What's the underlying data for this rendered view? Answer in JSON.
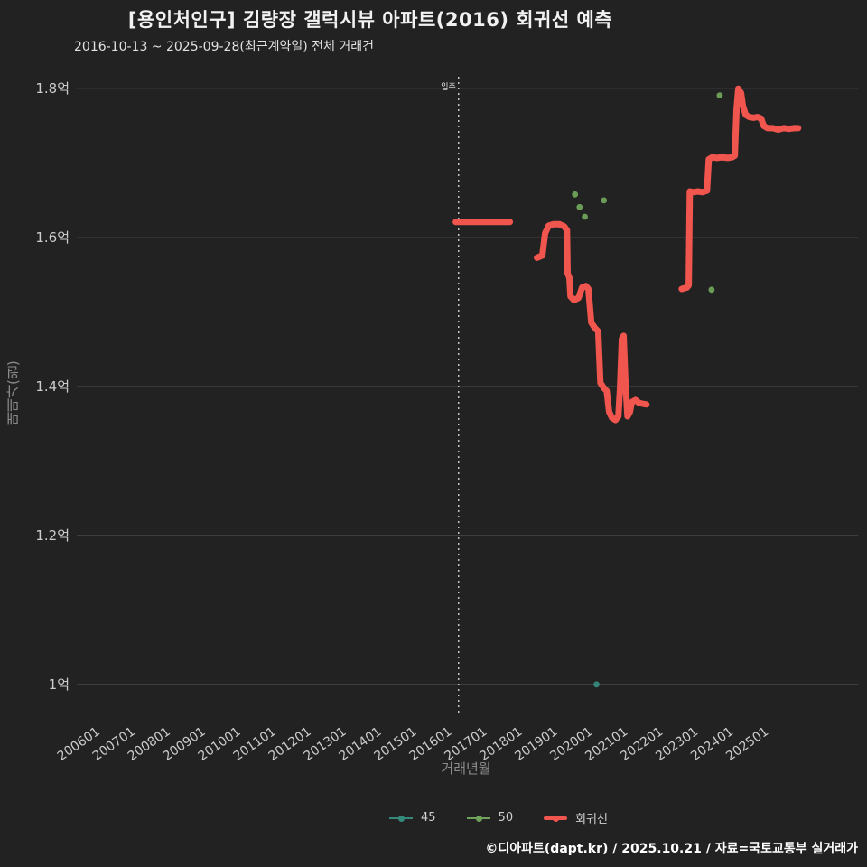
{
  "header": {
    "title": "[용인처인구] 김량장 갤럭시뷰 아파트(2016) 회귀선 예측",
    "subtitle": "2016-10-13 ~ 2025-09-28(최근계약일) 전체 거래건"
  },
  "legend": {
    "items": [
      {
        "label": "45",
        "color": "#35897b",
        "thick": false
      },
      {
        "label": "50",
        "color": "#6fa35c",
        "thick": false
      },
      {
        "label": "회귀선",
        "color": "#f0554e",
        "thick": true
      }
    ]
  },
  "footer": {
    "credit": "©디아파트(dapt.kr) / 2025.10.21 / 자료=국토교통부 실거래가"
  },
  "chart_data": {
    "type": "line",
    "title": "[용인처인구] 김량장 갤럭시뷰 아파트(2016) 회귀선 예측",
    "subtitle": "2016-10-13 ~ 2025-09-28(최근계약일) 전체 거래건",
    "xlabel": "거래년월",
    "ylabel": "매매가(원)",
    "grid": true,
    "legend_position": "bottom",
    "colors": {
      "background": "#222222",
      "gridline": "#4f4f4f",
      "tick_text": "#cccccc",
      "regression": "#f0554e",
      "scatter_50": "#6fa35c",
      "scatter_45": "#35897b",
      "annotation_line": "#cfcfcf"
    },
    "axis": {
      "x_min": 2005.5,
      "x_max": 2027.7,
      "y_min": 0.961,
      "y_max": 1.816
    },
    "x_tick_start_year": 2006,
    "x_ticks": [
      "200601",
      "200701",
      "200801",
      "200901",
      "201001",
      "201101",
      "201201",
      "201301",
      "201401",
      "201501",
      "201601",
      "201701",
      "201801",
      "201901",
      "202001",
      "202101",
      "202201",
      "202301",
      "202401",
      "202501"
    ],
    "y_ticks": [
      {
        "label": "1.8억",
        "value": 1.8
      },
      {
        "label": "1.6억",
        "value": 1.6
      },
      {
        "label": "1.4억",
        "value": 1.4
      },
      {
        "label": "1.2억",
        "value": 1.2
      },
      {
        "label": "1억",
        "value": 1.0
      }
    ],
    "annotation": {
      "x": 2016.35,
      "label": "입주",
      "line_style": "dotted"
    },
    "series": [
      {
        "name": "회귀선",
        "type": "line",
        "color": "#f0554e",
        "width": 7,
        "segments": [
          [
            [
              2016.27,
              1.621
            ],
            [
              2017.81,
              1.621
            ]
          ],
          [
            [
              2018.58,
              1.573
            ],
            [
              2018.73,
              1.576
            ],
            [
              2018.81,
              1.606
            ],
            [
              2018.91,
              1.616
            ],
            [
              2019.04,
              1.618
            ],
            [
              2019.22,
              1.618
            ],
            [
              2019.35,
              1.615
            ],
            [
              2019.43,
              1.61
            ],
            [
              2019.45,
              1.552
            ],
            [
              2019.5,
              1.546
            ],
            [
              2019.53,
              1.521
            ],
            [
              2019.63,
              1.516
            ],
            [
              2019.76,
              1.519
            ],
            [
              2019.86,
              1.533
            ],
            [
              2019.97,
              1.535
            ],
            [
              2020.04,
              1.531
            ],
            [
              2020.12,
              1.486
            ],
            [
              2020.22,
              1.479
            ],
            [
              2020.32,
              1.474
            ],
            [
              2020.38,
              1.405
            ],
            [
              2020.48,
              1.398
            ],
            [
              2020.56,
              1.394
            ],
            [
              2020.63,
              1.366
            ],
            [
              2020.71,
              1.358
            ],
            [
              2020.81,
              1.355
            ],
            [
              2020.89,
              1.36
            ],
            [
              2020.94,
              1.4
            ],
            [
              2020.99,
              1.464
            ],
            [
              2021.04,
              1.468
            ],
            [
              2021.09,
              1.41
            ],
            [
              2021.15,
              1.36
            ],
            [
              2021.22,
              1.366
            ],
            [
              2021.27,
              1.379
            ],
            [
              2021.38,
              1.382
            ],
            [
              2021.48,
              1.378
            ],
            [
              2021.58,
              1.377
            ],
            [
              2021.69,
              1.376
            ]
          ],
          [
            [
              2022.69,
              1.531
            ],
            [
              2022.84,
              1.533
            ],
            [
              2022.89,
              1.536
            ],
            [
              2022.92,
              1.662
            ],
            [
              2023.02,
              1.661
            ],
            [
              2023.15,
              1.662
            ],
            [
              2023.28,
              1.661
            ],
            [
              2023.41,
              1.663
            ],
            [
              2023.46,
              1.705
            ],
            [
              2023.56,
              1.708
            ],
            [
              2023.69,
              1.707
            ],
            [
              2023.84,
              1.708
            ],
            [
              2024.0,
              1.707
            ],
            [
              2024.13,
              1.708
            ],
            [
              2024.2,
              1.71
            ],
            [
              2024.25,
              1.773
            ],
            [
              2024.3,
              1.8
            ],
            [
              2024.38,
              1.794
            ],
            [
              2024.43,
              1.777
            ],
            [
              2024.51,
              1.765
            ],
            [
              2024.61,
              1.762
            ],
            [
              2024.74,
              1.761
            ],
            [
              2024.84,
              1.762
            ],
            [
              2024.95,
              1.76
            ],
            [
              2025.02,
              1.75
            ],
            [
              2025.13,
              1.747
            ],
            [
              2025.28,
              1.747
            ],
            [
              2025.43,
              1.745
            ],
            [
              2025.59,
              1.747
            ],
            [
              2025.74,
              1.746
            ],
            [
              2025.89,
              1.747
            ],
            [
              2026.0,
              1.747
            ]
          ]
        ]
      },
      {
        "name": "50",
        "type": "scatter",
        "color": "#6fa35c",
        "points": [
          [
            2019.66,
            1.658
          ],
          [
            2019.79,
            1.641
          ],
          [
            2019.94,
            1.628
          ],
          [
            2020.48,
            1.65
          ],
          [
            2023.54,
            1.53
          ],
          [
            2023.77,
            1.791
          ]
        ]
      },
      {
        "name": "45",
        "type": "scatter",
        "color": "#35897b",
        "points": [
          [
            2020.27,
            1.0
          ]
        ]
      }
    ]
  }
}
